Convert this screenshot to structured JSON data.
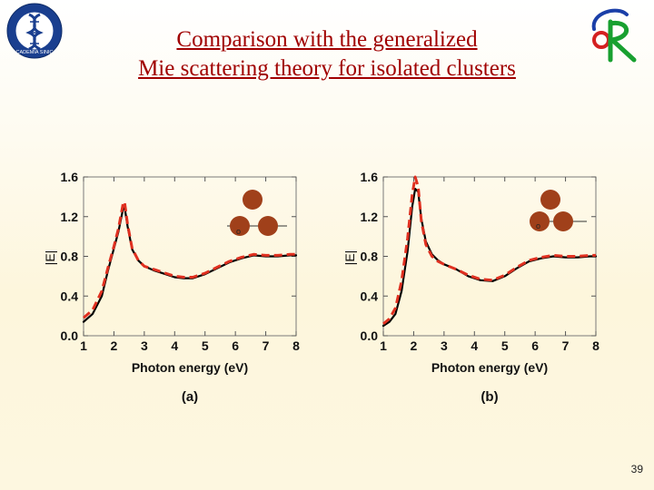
{
  "slide": {
    "title_line1": "Comparison with the generalized",
    "title_line2": "Mie scattering theory for isolated clusters",
    "page_number": "39",
    "logo_left_text": "ACADEMIA SINICA",
    "title_color": "#a00000"
  },
  "chart_data": [
    {
      "type": "line",
      "panel_label": "(a)",
      "xlabel": "Photon energy (eV)",
      "ylabel": "|E|",
      "xlim": [
        1,
        8
      ],
      "ylim": [
        0,
        1.6
      ],
      "xticks": [
        "1",
        "2",
        "3",
        "4",
        "5",
        "6",
        "7",
        "8"
      ],
      "yticks": [
        "0.0",
        "0.4",
        "0.8",
        "1.2",
        "1.6"
      ],
      "inset": {
        "cluster": "three spheres",
        "origin_label": "o"
      },
      "series": [
        {
          "name": "black solid",
          "color": "#000000",
          "style": "solid",
          "x": [
            1.0,
            1.3,
            1.6,
            1.8,
            2.0,
            2.15,
            2.3,
            2.35,
            2.45,
            2.6,
            2.8,
            3.0,
            3.3,
            3.6,
            4.0,
            4.3,
            4.6,
            5.0,
            5.4,
            5.8,
            6.2,
            6.6,
            7.0,
            7.4,
            7.8,
            8.0
          ],
          "y": [
            0.14,
            0.22,
            0.4,
            0.65,
            0.88,
            1.05,
            1.28,
            1.3,
            1.1,
            0.87,
            0.76,
            0.7,
            0.66,
            0.63,
            0.59,
            0.58,
            0.58,
            0.62,
            0.68,
            0.74,
            0.78,
            0.81,
            0.8,
            0.8,
            0.81,
            0.81
          ]
        },
        {
          "name": "red dashed",
          "color": "#e03020",
          "style": "dashed",
          "x": [
            1.0,
            1.3,
            1.6,
            1.8,
            2.0,
            2.15,
            2.3,
            2.35,
            2.45,
            2.6,
            2.8,
            3.0,
            3.3,
            3.6,
            4.0,
            4.3,
            4.6,
            5.0,
            5.4,
            5.8,
            6.2,
            6.6,
            7.0,
            7.4,
            7.8,
            8.0
          ],
          "y": [
            0.18,
            0.26,
            0.45,
            0.68,
            0.9,
            1.08,
            1.33,
            1.35,
            1.12,
            0.88,
            0.76,
            0.7,
            0.67,
            0.64,
            0.6,
            0.59,
            0.59,
            0.63,
            0.69,
            0.75,
            0.79,
            0.82,
            0.81,
            0.81,
            0.82,
            0.82
          ]
        }
      ]
    },
    {
      "type": "line",
      "panel_label": "(b)",
      "xlabel": "Photon energy (eV)",
      "ylabel": "|E|",
      "xlim": [
        1,
        8
      ],
      "ylim": [
        0,
        1.6
      ],
      "xticks": [
        "1",
        "2",
        "3",
        "4",
        "5",
        "6",
        "7",
        "8"
      ],
      "yticks": [
        "0.0",
        "0.4",
        "0.8",
        "1.2",
        "1.6"
      ],
      "inset": {
        "cluster": "three spheres",
        "origin_label": "o"
      },
      "series": [
        {
          "name": "black solid",
          "color": "#000000",
          "style": "solid",
          "x": [
            1.0,
            1.2,
            1.4,
            1.6,
            1.8,
            1.95,
            2.05,
            2.15,
            2.25,
            2.4,
            2.6,
            2.8,
            3.0,
            3.4,
            3.8,
            4.2,
            4.6,
            5.0,
            5.4,
            5.8,
            6.2,
            6.6,
            7.0,
            7.4,
            7.8,
            8.0
          ],
          "y": [
            0.1,
            0.14,
            0.22,
            0.45,
            0.85,
            1.3,
            1.48,
            1.45,
            1.18,
            0.95,
            0.82,
            0.76,
            0.72,
            0.67,
            0.6,
            0.56,
            0.55,
            0.6,
            0.68,
            0.75,
            0.78,
            0.8,
            0.79,
            0.79,
            0.8,
            0.8
          ]
        },
        {
          "name": "red dashed",
          "color": "#e03020",
          "style": "dashed",
          "x": [
            1.0,
            1.2,
            1.4,
            1.6,
            1.8,
            1.95,
            2.05,
            2.15,
            2.25,
            2.4,
            2.6,
            2.8,
            3.0,
            3.4,
            3.8,
            4.2,
            4.6,
            5.0,
            5.4,
            5.8,
            6.2,
            6.6,
            7.0,
            7.4,
            7.8,
            8.0
          ],
          "y": [
            0.12,
            0.17,
            0.28,
            0.55,
            0.98,
            1.42,
            1.6,
            1.5,
            1.16,
            0.92,
            0.8,
            0.75,
            0.72,
            0.67,
            0.61,
            0.57,
            0.56,
            0.61,
            0.69,
            0.76,
            0.79,
            0.81,
            0.8,
            0.8,
            0.81,
            0.81
          ]
        }
      ]
    }
  ]
}
